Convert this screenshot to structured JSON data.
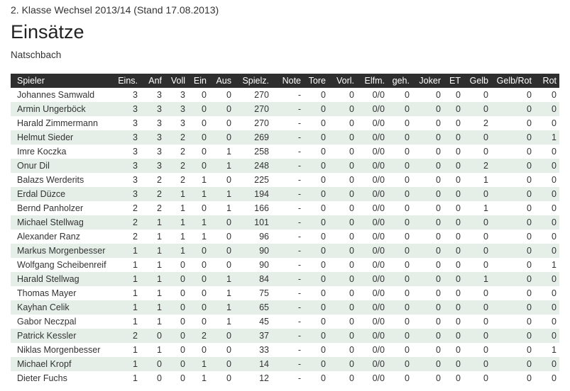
{
  "header": {
    "league": "2. Klasse Wechsel 2013/14 (Stand 17.08.2013)",
    "title": "Einsätze",
    "team": "Natschbach"
  },
  "table": {
    "columns": [
      "Spieler",
      "Eins.",
      "Anf",
      "Voll",
      "Ein",
      "Aus",
      "Spielz.",
      "Note",
      "Tore",
      "Vorl.",
      "Elfm.",
      "geh.",
      "Joker",
      "ET",
      "Gelb",
      "Gelb/Rot",
      "Rot"
    ],
    "rows": [
      [
        "Johannes Samwald",
        3,
        3,
        3,
        0,
        0,
        270,
        "-",
        0,
        0,
        "0/0",
        0,
        0,
        0,
        0,
        0,
        0
      ],
      [
        "Armin Ungerböck",
        3,
        3,
        3,
        0,
        0,
        270,
        "-",
        0,
        0,
        "0/0",
        0,
        0,
        0,
        0,
        0,
        0
      ],
      [
        "Harald Zimmermann",
        3,
        3,
        3,
        0,
        0,
        270,
        "-",
        0,
        0,
        "0/0",
        0,
        0,
        0,
        2,
        0,
        0
      ],
      [
        "Helmut Sieder",
        3,
        3,
        2,
        0,
        0,
        269,
        "-",
        0,
        0,
        "0/0",
        0,
        0,
        0,
        0,
        0,
        1
      ],
      [
        "Imre Koczka",
        3,
        3,
        2,
        0,
        1,
        258,
        "-",
        0,
        0,
        "0/0",
        0,
        0,
        0,
        0,
        0,
        0
      ],
      [
        "Onur Dil",
        3,
        3,
        2,
        0,
        1,
        248,
        "-",
        0,
        0,
        "0/0",
        0,
        0,
        0,
        2,
        0,
        0
      ],
      [
        "Balazs Werderits",
        3,
        2,
        2,
        1,
        0,
        225,
        "-",
        0,
        0,
        "0/0",
        0,
        0,
        0,
        1,
        0,
        0
      ],
      [
        "Erdal Düzce",
        3,
        2,
        1,
        1,
        1,
        194,
        "-",
        0,
        0,
        "0/0",
        0,
        0,
        0,
        0,
        0,
        0
      ],
      [
        "Bernd Panholzer",
        2,
        2,
        1,
        0,
        1,
        166,
        "-",
        0,
        0,
        "0/0",
        0,
        0,
        0,
        1,
        0,
        0
      ],
      [
        "Michael Stellwag",
        2,
        1,
        1,
        1,
        0,
        101,
        "-",
        0,
        0,
        "0/0",
        0,
        0,
        0,
        0,
        0,
        0
      ],
      [
        "Alexander Ranz",
        2,
        1,
        1,
        1,
        0,
        96,
        "-",
        0,
        0,
        "0/0",
        0,
        0,
        0,
        0,
        0,
        0
      ],
      [
        "Markus Morgenbesser",
        1,
        1,
        1,
        0,
        0,
        90,
        "-",
        0,
        0,
        "0/0",
        0,
        0,
        0,
        0,
        0,
        0
      ],
      [
        "Wolfgang Scheibenreif",
        1,
        1,
        0,
        0,
        0,
        90,
        "-",
        0,
        0,
        "0/0",
        0,
        0,
        0,
        0,
        0,
        1
      ],
      [
        "Harald Stellwag",
        1,
        1,
        0,
        0,
        1,
        84,
        "-",
        0,
        0,
        "0/0",
        0,
        0,
        0,
        1,
        0,
        0
      ],
      [
        "Thomas Mayer",
        1,
        1,
        0,
        0,
        1,
        75,
        "-",
        0,
        0,
        "0/0",
        0,
        0,
        0,
        0,
        0,
        0
      ],
      [
        "Kayhan Celik",
        1,
        1,
        0,
        0,
        1,
        65,
        "-",
        0,
        0,
        "0/0",
        0,
        0,
        0,
        0,
        0,
        0
      ],
      [
        "Gabor Neczpal",
        1,
        1,
        0,
        0,
        1,
        45,
        "-",
        0,
        0,
        "0/0",
        0,
        0,
        0,
        0,
        0,
        0
      ],
      [
        "Patrick Kessler",
        2,
        0,
        0,
        2,
        0,
        37,
        "-",
        0,
        0,
        "0/0",
        0,
        0,
        0,
        0,
        0,
        0
      ],
      [
        "Niklas Morgenbesser",
        1,
        1,
        0,
        0,
        0,
        33,
        "-",
        0,
        0,
        "0/0",
        0,
        0,
        0,
        0,
        0,
        1
      ],
      [
        "Michael Kropf",
        1,
        0,
        0,
        1,
        0,
        14,
        "-",
        0,
        0,
        "0/0",
        0,
        0,
        0,
        0,
        0,
        0
      ],
      [
        "Dieter Fuchs",
        1,
        0,
        0,
        1,
        0,
        12,
        "-",
        0,
        0,
        "0/0",
        0,
        0,
        0,
        0,
        0,
        0
      ]
    ]
  }
}
